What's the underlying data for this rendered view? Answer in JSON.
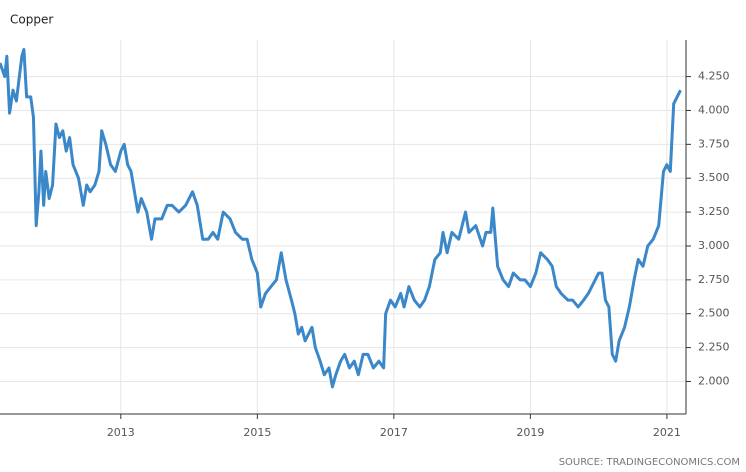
{
  "chart_data": {
    "type": "line",
    "title": "Copper",
    "source": "SOURCE: TRADINGECONOMICS.COM",
    "x": [
      2011.23,
      2011.3,
      2011.33,
      2011.37,
      2011.42,
      2011.47,
      2011.55,
      2011.58,
      2011.62,
      2011.68,
      2011.72,
      2011.76,
      2011.8,
      2011.83,
      2011.87,
      2011.9,
      2011.95,
      2012.0,
      2012.05,
      2012.1,
      2012.15,
      2012.2,
      2012.25,
      2012.3,
      2012.38,
      2012.45,
      2012.5,
      2012.55,
      2012.62,
      2012.68,
      2012.72,
      2012.78,
      2012.85,
      2012.92,
      2013.0,
      2013.05,
      2013.1,
      2013.15,
      2013.25,
      2013.3,
      2013.38,
      2013.45,
      2013.5,
      2013.6,
      2013.68,
      2013.75,
      2013.85,
      2013.95,
      2014.05,
      2014.12,
      2014.2,
      2014.28,
      2014.35,
      2014.42,
      2014.5,
      2014.6,
      2014.68,
      2014.78,
      2014.85,
      2014.92,
      2015.0,
      2015.05,
      2015.12,
      2015.2,
      2015.28,
      2015.35,
      2015.42,
      2015.5,
      2015.55,
      2015.6,
      2015.65,
      2015.7,
      2015.75,
      2015.8,
      2015.85,
      2015.92,
      2015.98,
      2016.05,
      2016.1,
      2016.15,
      2016.22,
      2016.28,
      2016.35,
      2016.42,
      2016.48,
      2016.55,
      2016.62,
      2016.7,
      2016.78,
      2016.85,
      2016.88,
      2016.95,
      2017.02,
      2017.1,
      2017.15,
      2017.22,
      2017.3,
      2017.38,
      2017.45,
      2017.52,
      2017.6,
      2017.68,
      2017.72,
      2017.78,
      2017.85,
      2017.95,
      2018.05,
      2018.1,
      2018.2,
      2018.3,
      2018.35,
      2018.42,
      2018.45,
      2018.52,
      2018.6,
      2018.68,
      2018.75,
      2018.85,
      2018.92,
      2019.0,
      2019.08,
      2019.15,
      2019.25,
      2019.32,
      2019.38,
      2019.45,
      2019.55,
      2019.62,
      2019.7,
      2019.78,
      2019.85,
      2019.95,
      2020.0,
      2020.05,
      2020.1,
      2020.15,
      2020.2,
      2020.25,
      2020.3,
      2020.38,
      2020.45,
      2020.52,
      2020.58,
      2020.65,
      2020.72,
      2020.8,
      2020.88,
      2020.95,
      2021.0,
      2021.05,
      2021.1,
      2021.15,
      2021.2
    ],
    "series": [
      {
        "name": "Copper",
        "color": "#3a87c9",
        "values": [
          4.35,
          4.25,
          4.4,
          3.98,
          4.15,
          4.07,
          4.4,
          4.45,
          4.1,
          4.1,
          3.95,
          3.15,
          3.4,
          3.7,
          3.3,
          3.55,
          3.35,
          3.45,
          3.9,
          3.8,
          3.85,
          3.7,
          3.8,
          3.6,
          3.5,
          3.3,
          3.45,
          3.4,
          3.45,
          3.55,
          3.85,
          3.75,
          3.6,
          3.55,
          3.7,
          3.75,
          3.6,
          3.55,
          3.25,
          3.35,
          3.25,
          3.05,
          3.2,
          3.2,
          3.3,
          3.3,
          3.25,
          3.3,
          3.4,
          3.3,
          3.05,
          3.05,
          3.1,
          3.05,
          3.25,
          3.2,
          3.1,
          3.05,
          3.05,
          2.9,
          2.8,
          2.55,
          2.65,
          2.7,
          2.75,
          2.95,
          2.75,
          2.6,
          2.5,
          2.35,
          2.4,
          2.3,
          2.35,
          2.4,
          2.25,
          2.15,
          2.05,
          2.1,
          1.96,
          2.05,
          2.15,
          2.2,
          2.1,
          2.15,
          2.05,
          2.2,
          2.2,
          2.1,
          2.15,
          2.1,
          2.5,
          2.6,
          2.55,
          2.65,
          2.55,
          2.7,
          2.6,
          2.55,
          2.6,
          2.7,
          2.9,
          2.95,
          3.1,
          2.95,
          3.1,
          3.05,
          3.25,
          3.1,
          3.15,
          3.0,
          3.1,
          3.1,
          3.28,
          2.85,
          2.75,
          2.7,
          2.8,
          2.75,
          2.75,
          2.7,
          2.8,
          2.95,
          2.9,
          2.85,
          2.7,
          2.65,
          2.6,
          2.6,
          2.55,
          2.6,
          2.65,
          2.75,
          2.8,
          2.8,
          2.6,
          2.55,
          2.2,
          2.15,
          2.3,
          2.4,
          2.55,
          2.75,
          2.9,
          2.85,
          3.0,
          3.05,
          3.15,
          3.55,
          3.6,
          3.55,
          4.05,
          4.1,
          4.15
        ]
      }
    ],
    "xlim": [
      2011.23,
      2021.28
    ],
    "xticks": [
      2013,
      2015,
      2017,
      2019,
      2021
    ],
    "ylim": [
      1.76,
      4.52
    ],
    "yticks": [
      {
        "value": 2,
        "label": "2.000"
      },
      {
        "value": 2.25,
        "label": "2.250"
      },
      {
        "value": 2.5,
        "label": "2.500"
      },
      {
        "value": 2.75,
        "label": "2.750"
      },
      {
        "value": 3,
        "label": "3.000"
      },
      {
        "value": 3.25,
        "label": "3.250"
      },
      {
        "value": 3.5,
        "label": "3.500"
      },
      {
        "value": 3.75,
        "label": "3.750"
      },
      {
        "value": 4,
        "label": "4.000"
      },
      {
        "value": 4.25,
        "label": "4.250"
      }
    ],
    "grid": true
  }
}
